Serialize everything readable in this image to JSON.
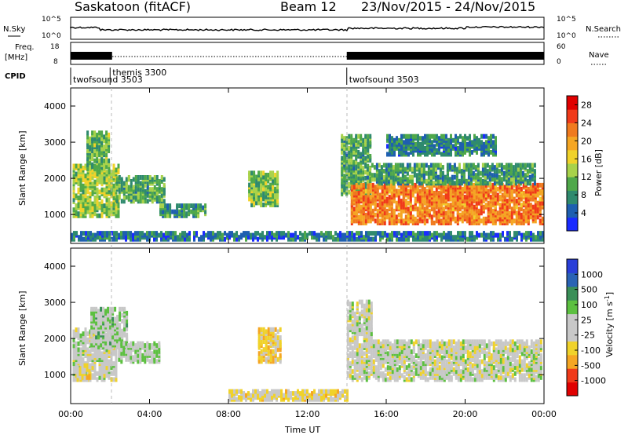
{
  "header": {
    "station": "Saskatoon (fitACF)",
    "beam": "Beam 12",
    "dates": "23/Nov/2015 - 24/Nov/2015"
  },
  "noise_panel": {
    "left_label": "N.Sky",
    "right_label": "N.Search",
    "left_ticks": [
      "10^5",
      "10^0"
    ],
    "right_ticks": [
      "10^5",
      "10^0"
    ]
  },
  "freq_panel": {
    "left_label_1": "Freq.",
    "left_label_2": "[MHz]",
    "right_label": "Nave",
    "left_ticks": [
      "18",
      "8"
    ],
    "right_ticks": [
      "60",
      "0"
    ]
  },
  "cpid_panel": {
    "label": "CPID",
    "programs": [
      {
        "name": "twofsound 3503",
        "start_hour": 0,
        "row": "lower"
      },
      {
        "name": "themis 3300",
        "start_hour": 2,
        "row": "upper"
      },
      {
        "name": "twofsound 3503",
        "start_hour": 14,
        "row": "lower"
      }
    ]
  },
  "time_axis": {
    "label": "Time UT",
    "ticks": [
      "00:00",
      "04:00",
      "08:00",
      "12:00",
      "16:00",
      "20:00",
      "00:00"
    ]
  },
  "colors": {
    "power": [
      "#1a2bff",
      "#1e5fb0",
      "#2f8a6e",
      "#4fa84a",
      "#a8d24a",
      "#f0d22a",
      "#f5a623",
      "#f07a1e",
      "#f03a1a",
      "#e00000"
    ],
    "velocity": [
      "#e00000",
      "#f03a1a",
      "#f5a623",
      "#f0d22a",
      "#c8c8c8",
      "#c8c8c8",
      "#5cc040",
      "#3a8f58",
      "#2a63b5",
      "#2a3fd8"
    ]
  },
  "chart_data": [
    {
      "type": "heatmap",
      "title": "Power",
      "ylabel": "Slant Range [km]",
      "xlabel": "",
      "xlim": [
        0,
        24
      ],
      "ylim": [
        200,
        4500
      ],
      "y_ticks": [
        "1000",
        "2000",
        "3000",
        "4000"
      ],
      "colorbar": {
        "label": "Power [dB]",
        "ticks": [
          "4",
          "8",
          "12",
          "16",
          "20",
          "24",
          "28"
        ],
        "range": [
          0,
          30
        ]
      },
      "patches": [
        {
          "t0": 0.1,
          "t1": 2.4,
          "r0": 900,
          "r1": 2300,
          "value": 13
        },
        {
          "t0": 0.8,
          "t1": 1.9,
          "r0": 2200,
          "r1": 3200,
          "value": 11
        },
        {
          "t0": 2.3,
          "t1": 4.7,
          "r0": 1300,
          "r1": 2000,
          "value": 10
        },
        {
          "t0": 4.5,
          "t1": 6.8,
          "r0": 900,
          "r1": 1200,
          "value": 9
        },
        {
          "t0": 9.0,
          "t1": 10.5,
          "r0": 1200,
          "r1": 2100,
          "value": 12
        },
        {
          "t0": 13.7,
          "t1": 15.2,
          "r0": 1500,
          "r1": 3100,
          "value": 10
        },
        {
          "t0": 14.2,
          "t1": 23.9,
          "r0": 700,
          "r1": 1800,
          "value": 22
        },
        {
          "t0": 15.0,
          "t1": 23.5,
          "r0": 1800,
          "r1": 2300,
          "value": 9
        },
        {
          "t0": 16.0,
          "t1": 21.5,
          "r0": 2600,
          "r1": 3100,
          "value": 7
        },
        {
          "t0": 0.0,
          "t1": 24.0,
          "r0": 250,
          "r1": 450,
          "value": 6
        }
      ]
    },
    {
      "type": "heatmap",
      "title": "Velocity",
      "ylabel": "Slant Range [km]",
      "xlabel": "Time UT",
      "xlim": [
        0,
        24
      ],
      "ylim": [
        200,
        4500
      ],
      "y_ticks": [
        "1000",
        "2000",
        "3000",
        "4000"
      ],
      "colorbar": {
        "label": "Velocity [m s^-1]",
        "ticks": [
          "1000",
          "500",
          "100",
          "25",
          "-25",
          "-100",
          "-500",
          "-1000"
        ],
        "range": [
          -1000,
          1000
        ]
      },
      "patches": [
        {
          "t0": 0.1,
          "t1": 2.3,
          "r0": 800,
          "r1": 2200,
          "value": 0
        },
        {
          "t0": 0.3,
          "t1": 1.0,
          "r0": 800,
          "r1": 1200,
          "value": -150
        },
        {
          "t0": 1.0,
          "t1": 2.8,
          "r0": 1700,
          "r1": 2800,
          "value": 150
        },
        {
          "t0": 2.4,
          "t1": 4.5,
          "r0": 1300,
          "r1": 1800,
          "value": 120
        },
        {
          "t0": 9.5,
          "t1": 10.6,
          "r0": 1300,
          "r1": 2200,
          "value": -300
        },
        {
          "t0": 14.0,
          "t1": 23.9,
          "r0": 800,
          "r1": 1900,
          "value": 0
        },
        {
          "t0": 14.0,
          "t1": 15.2,
          "r0": 1900,
          "r1": 3000,
          "value": 0
        },
        {
          "t0": 8.0,
          "t1": 14.0,
          "r0": 250,
          "r1": 500,
          "value": -150
        }
      ]
    }
  ]
}
